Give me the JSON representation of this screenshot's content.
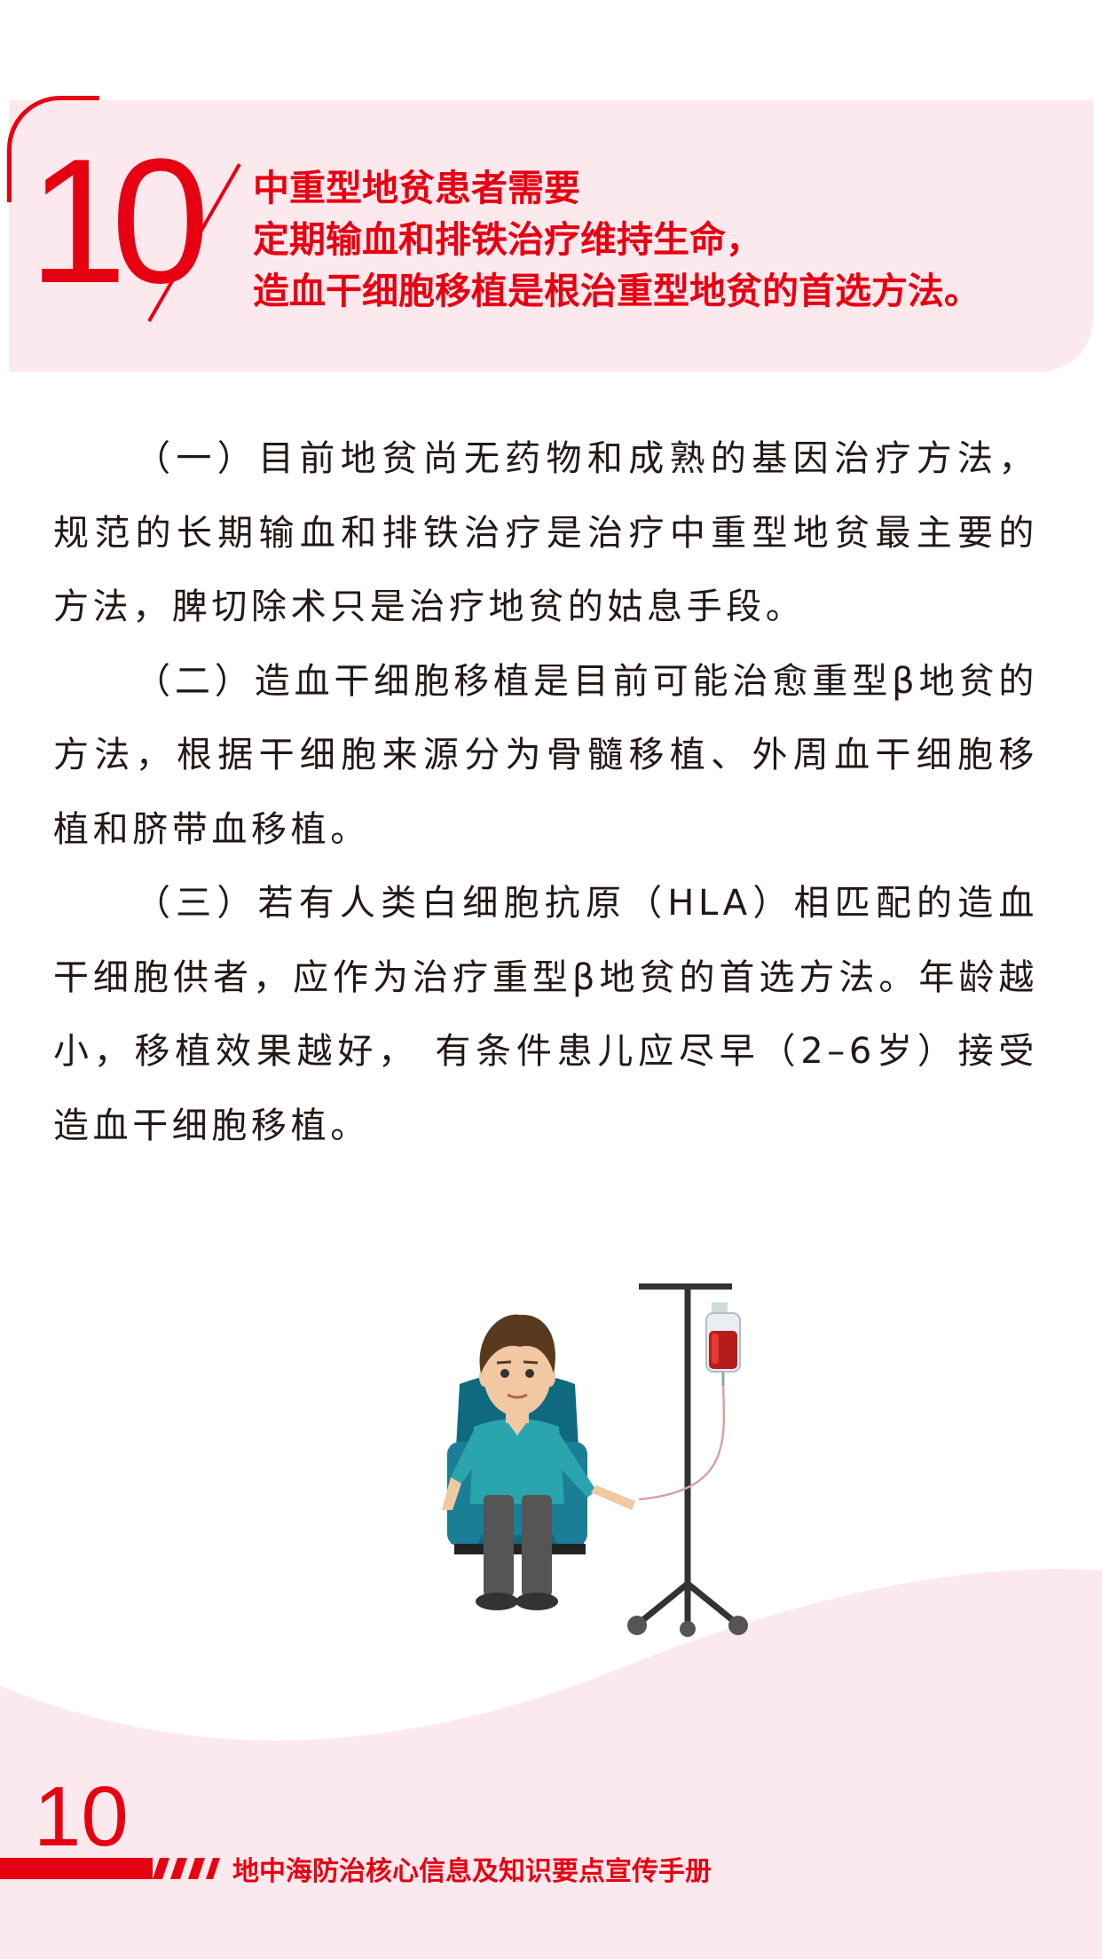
{
  "header": {
    "number": "10",
    "lines": [
      "中重型地贫患者需要",
      "定期输血和排铁治疗维持生命，",
      "造血干细胞移植是根治重型地贫的首选方法。"
    ]
  },
  "body": {
    "paragraphs": [
      "（一）目前地贫尚无药物和成熟的基因治疗方法，规范的长期输血和排铁治疗是治疗中重型地贫最主要的方法，脾切除术只是治疗地贫的姑息手段。",
      "（二）造血干细胞移植是目前可能治愈重型β地贫的方法，根据干细胞来源分为骨髓移植、外周血干细胞移植和脐带血移植。",
      "（三）若有人类白细胞抗原（HLA）相匹配的造血干细胞供者，应作为治疗重型β地贫的首选方法。年龄越小，移植效果越好， 有条件患儿应尽早（2–6岁）接受造血干细胞移植。"
    ]
  },
  "illustration": {
    "icon": "patient-transfusion-icon"
  },
  "footer": {
    "page_number": "10",
    "title": "地中海防治核心信息及知识要点宣传手册"
  },
  "colors": {
    "accent": "#e60012",
    "band": "#fce9ed",
    "text": "#231815"
  }
}
